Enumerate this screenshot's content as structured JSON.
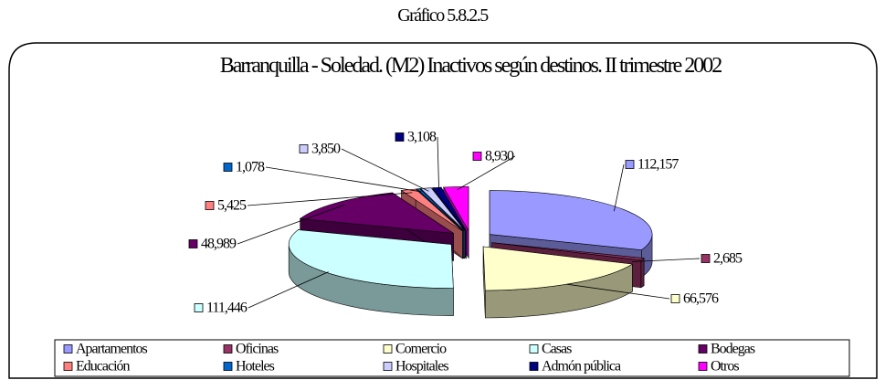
{
  "heading": "Gráfico 5.8.2.5",
  "chart_data": {
    "type": "pie3d",
    "title": "Barranquilla - Soledad. (M2) Inactivos según destinos. II trimestre 2002",
    "categories": [
      "Apartamentos",
      "Oficinas",
      "Comercio",
      "Casas",
      "Bodegas",
      "Educación",
      "Hoteles",
      "Hospitales",
      "Admón pública",
      "Otros"
    ],
    "values": [
      112157,
      2685,
      66576,
      111446,
      48989,
      5425,
      1078,
      3850,
      3108,
      8930
    ],
    "value_labels": [
      "112,157",
      "2,685",
      "66,576",
      "111,446",
      "48,989",
      "5,425",
      "1,078",
      "3,850",
      "3,108",
      "8,930"
    ],
    "colors": [
      "#9999ff",
      "#993366",
      "#ffffcc",
      "#ccffff",
      "#660066",
      "#ff8080",
      "#0066cc",
      "#ccccff",
      "#000080",
      "#ff00ff"
    ],
    "legend": "bottom"
  }
}
